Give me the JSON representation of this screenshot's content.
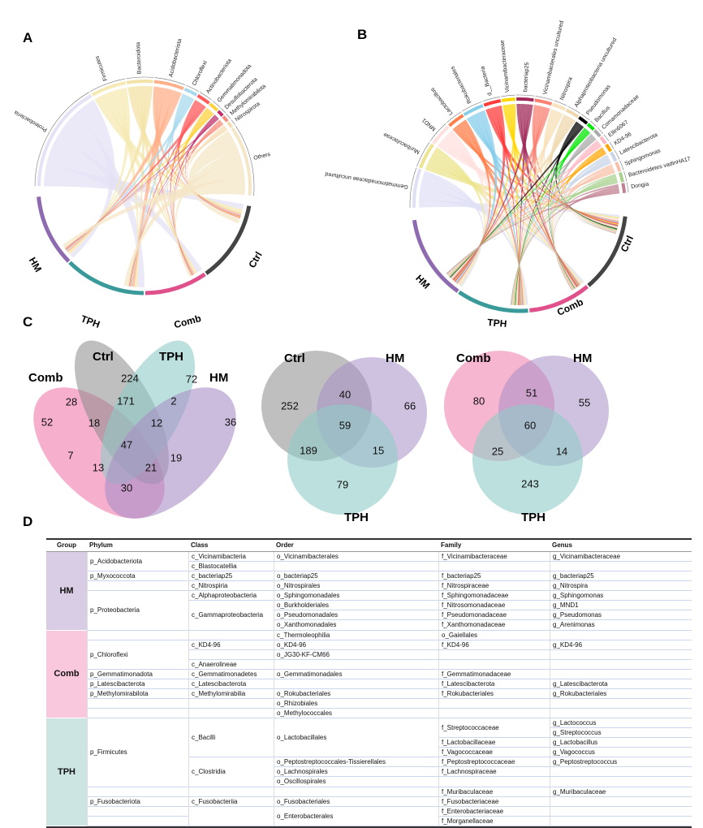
{
  "panels": {
    "a": "A",
    "b": "B",
    "c": "C",
    "d": "D"
  },
  "chord_a": {
    "taxa": [
      {
        "name": "Proteobacteria",
        "color": "#e4e2f6"
      },
      {
        "name": "Firmicutes",
        "color": "#f6e9b4"
      },
      {
        "name": "Bacteroidota",
        "color": "#f3e3a6"
      },
      {
        "name": "Acidobacteriota",
        "color": "#ffb08a"
      },
      {
        "name": "Chloroflexi",
        "color": "#a9d9ec"
      },
      {
        "name": "Actinobacteriota",
        "color": "#ff5a5a"
      },
      {
        "name": "Gemmatimonadota",
        "color": "#ffd23c"
      },
      {
        "name": "Desulfobacterota",
        "color": "#c0306a"
      },
      {
        "name": "Methylomirabilota",
        "color": "#fa8a7a"
      },
      {
        "name": "Nitrospirota",
        "color": "#f5dcb0"
      },
      {
        "name": "Others",
        "color": "#f4e6c6"
      }
    ],
    "groups": [
      {
        "name": "Ctrl",
        "color": "#444444"
      },
      {
        "name": "Comb",
        "color": "#e0508a"
      },
      {
        "name": "TPH",
        "color": "#3a9a9a"
      },
      {
        "name": "HM",
        "color": "#8e6bb0"
      }
    ]
  },
  "chord_b": {
    "taxa": [
      {
        "name": "Gemmatimonadaceae uncultured",
        "color": "#e0e0f5"
      },
      {
        "name": "Muribaculaceae",
        "color": "#ece48e"
      },
      {
        "name": "MND1",
        "color": "#ffe0de"
      },
      {
        "name": "Lactobacillus",
        "color": "#ff7f4a"
      },
      {
        "name": "Rokubacteriales",
        "color": "#87ceeb"
      },
      {
        "name": "d__Bacteria",
        "color": "#ff3b3b"
      },
      {
        "name": "Vicinamibacteraceae",
        "color": "#ffd700"
      },
      {
        "name": "bacteriap25",
        "color": "#a0295a"
      },
      {
        "name": "Vicinamibacterales uncultured",
        "color": "#fa8072"
      },
      {
        "name": "Nitrospira",
        "color": "#f8e0b8"
      },
      {
        "name": "Alphaproteobacteria uncultured",
        "color": "#efd8ae"
      },
      {
        "name": "Pseudomonas",
        "color": "#000000"
      },
      {
        "name": "Bacillus",
        "color": "#00e600"
      },
      {
        "name": "Comamonadaceae",
        "color": "#aaaaaa"
      },
      {
        "name": "Ellin6067",
        "color": "#ffb6c1"
      },
      {
        "name": "KD4-96",
        "color": "#ffa500"
      },
      {
        "name": "Latescibacterota",
        "color": "#c8d4e8"
      },
      {
        "name": "Sphingomonas",
        "color": "#f8c0a8"
      },
      {
        "name": "Bacteroidetes vadinHA17",
        "color": "#a8d08d"
      },
      {
        "name": "Dongia",
        "color": "#c08090"
      }
    ],
    "groups": [
      {
        "name": "Ctrl",
        "color": "#444444"
      },
      {
        "name": "Comb",
        "color": "#e0508a"
      },
      {
        "name": "TPH",
        "color": "#3a9a9a"
      },
      {
        "name": "HM",
        "color": "#8e6bb0"
      }
    ]
  },
  "venn1": {
    "sets": {
      "comb": "Comb",
      "ctrl": "Ctrl",
      "tph": "TPH",
      "hm": "HM"
    },
    "values": {
      "ctrl_only": "224",
      "tph_only": "72",
      "comb_ctrl": "28",
      "ctrl_tph": "171",
      "tph_hm": "2",
      "comb_only": "52",
      "hm_only": "36",
      "comb_ctrl_tph": "18",
      "ctrl_tph_hm": "12",
      "all": "47",
      "comb_tph": "7",
      "ctrl_hm": "19",
      "comb_ctrl_hm": "13",
      "comb_tph_hm": "21",
      "comb_hm": "30"
    }
  },
  "venn2": {
    "sets": {
      "ctrl": "Ctrl",
      "hm": "HM",
      "tph": "TPH"
    },
    "values": {
      "ctrl_only": "252",
      "ctrl_hm": "40",
      "hm_only": "66",
      "all": "59",
      "ctrl_tph": "189",
      "hm_tph": "15",
      "tph_only": "79"
    }
  },
  "venn3": {
    "sets": {
      "comb": "Comb",
      "hm": "HM",
      "tph": "TPH"
    },
    "values": {
      "comb_only": "80",
      "comb_hm": "51",
      "hm_only": "55",
      "all": "60",
      "comb_tph": "25",
      "hm_tph": "14",
      "tph_only": "243"
    }
  },
  "table": {
    "headers": [
      "Group",
      "Phylum",
      "Class",
      "Order",
      "Family",
      "Genus"
    ],
    "group_colors": {
      "HM": "#d9cde6",
      "Comb": "#f9c8dc",
      "TPH": "#cce5e3"
    },
    "columns": [
      [
        {
          "t": "HM",
          "s": 8
        },
        {
          "t": "Comb",
          "s": 9
        },
        {
          "t": "TPH",
          "s": 11
        }
      ],
      [
        {
          "t": "p_Acidobacteriota",
          "s": 2
        },
        {
          "t": "p_Myxococcota",
          "s": 1
        },
        {
          "t": "",
          "s": 1
        },
        {
          "t": "p_Proteobacteria",
          "s": 4
        },
        {
          "t": "",
          "s": 1
        },
        {
          "t": "p_Chloroflexi",
          "s": 3
        },
        {
          "t": "p_Gemmatimonadota",
          "s": 1
        },
        {
          "t": "p_Latescibacterota",
          "s": 1
        },
        {
          "t": "p_Methylomirabilota",
          "s": 1
        },
        {
          "t": "",
          "s": 1
        },
        {
          "t": "",
          "s": 1
        },
        {
          "t": "p_Firmicutes",
          "s": 7
        },
        {
          "t": "",
          "s": 1
        },
        {
          "t": "p_Fusobacteriota",
          "s": 1
        },
        {
          "t": "",
          "s": 1
        },
        {
          "t": "",
          "s": 1
        }
      ],
      [
        {
          "t": "c_Vicinamibacteria",
          "s": 1
        },
        {
          "t": "c_Blastocatellia",
          "s": 1
        },
        {
          "t": "c_bacteriap25",
          "s": 1
        },
        {
          "t": "c_Nitrospiria",
          "s": 1
        },
        {
          "t": "c_Alphaproteobacteria",
          "s": 1
        },
        {
          "t": "c_Gammaproteobacteria",
          "s": 3
        },
        {
          "t": "",
          "s": 1
        },
        {
          "t": "c_KD4-96",
          "s": 1
        },
        {
          "t": "",
          "s": 1
        },
        {
          "t": "c_Anaerolineae",
          "s": 1
        },
        {
          "t": "c_Gemmatimonadetes",
          "s": 1
        },
        {
          "t": "c_Latescibacterota",
          "s": 1
        },
        {
          "t": "c_Methylomirabilia",
          "s": 1
        },
        {
          "t": "",
          "s": 1
        },
        {
          "t": "",
          "s": 1
        },
        {
          "t": "c_Bacilli",
          "s": 4
        },
        {
          "t": "c_Clostridia",
          "s": 3
        },
        {
          "t": "",
          "s": 1
        },
        {
          "t": "c_Fusobacteriia",
          "s": 1
        },
        {
          "t": "",
          "s": 2
        }
      ],
      [
        {
          "t": "o_Vicinamibacterales",
          "s": 1
        },
        {
          "t": "",
          "s": 1
        },
        {
          "t": "o_bacteriap25",
          "s": 1
        },
        {
          "t": "o_Nitrospirales",
          "s": 1
        },
        {
          "t": "o_Sphingomonadales",
          "s": 1
        },
        {
          "t": "o_Burkholderiales",
          "s": 1
        },
        {
          "t": "o_Pseudomonadales",
          "s": 1
        },
        {
          "t": "o_Xanthomonadales",
          "s": 1
        },
        {
          "t": "c_Thermoleophilia",
          "s": 1
        },
        {
          "t": "o_KD4-96",
          "s": 1
        },
        {
          "t": "o_JG30-KF-CM66",
          "s": 1
        },
        {
          "t": "",
          "s": 1
        },
        {
          "t": "o_Gemmatimonadales",
          "s": 1
        },
        {
          "t": "",
          "s": 1
        },
        {
          "t": "o_Rokubacteriales",
          "s": 1
        },
        {
          "t": "o_Rhizobiales",
          "s": 1
        },
        {
          "t": "o_Methylococcales",
          "s": 1
        },
        {
          "t": "o_Lactobacillales",
          "s": 4
        },
        {
          "t": "o_Peptostreptococcales-Tissierellales",
          "s": 1
        },
        {
          "t": "o_Lachnospirales",
          "s": 1
        },
        {
          "t": "o_Oscillospirales",
          "s": 1
        },
        {
          "t": "",
          "s": 1
        },
        {
          "t": "o_Fusobacteriales",
          "s": 1
        },
        {
          "t": "o_Enterobacterales",
          "s": 2
        }
      ],
      [
        {
          "t": "f_Vicinamibacteraceae",
          "s": 1
        },
        {
          "t": "",
          "s": 1
        },
        {
          "t": "f_bacteriap25",
          "s": 1
        },
        {
          "t": "f_Nitrospiraceae",
          "s": 1
        },
        {
          "t": "f_Sphingomonadaceae",
          "s": 1
        },
        {
          "t": "f_Nitrosomonadaceae",
          "s": 1
        },
        {
          "t": "f_Pseudomonadaceae",
          "s": 1
        },
        {
          "t": "f_Xanthomonadaceae",
          "s": 1
        },
        {
          "t": "o_Gaiellales",
          "s": 1
        },
        {
          "t": "f_KD4-96",
          "s": 1
        },
        {
          "t": "",
          "s": 1
        },
        {
          "t": "",
          "s": 1
        },
        {
          "t": "f_Gemmatimonadaceae",
          "s": 1
        },
        {
          "t": "f_Latescibacterota",
          "s": 1
        },
        {
          "t": "f_Rokubacteriales",
          "s": 1
        },
        {
          "t": "",
          "s": 1
        },
        {
          "t": "",
          "s": 1
        },
        {
          "t": "f_Streptococcaceae",
          "s": 2
        },
        {
          "t": "f_Lactobacillaceae",
          "s": 1
        },
        {
          "t": "f_Vagococcaceae",
          "s": 1
        },
        {
          "t": "f_Peptostreptococcaceae",
          "s": 1
        },
        {
          "t": "f_Lachnospiraceae",
          "s": 1
        },
        {
          "t": "",
          "s": 1
        },
        {
          "t": "f_Muribaculaceae",
          "s": 1
        },
        {
          "t": "f_Fusobacteriaceae",
          "s": 1
        },
        {
          "t": "f_Enterobacteriaceae",
          "s": 1
        },
        {
          "t": "f_Morganellaceae",
          "s": 1
        }
      ],
      [
        {
          "t": "g_Vicinamibacteraceae",
          "s": 1
        },
        {
          "t": "",
          "s": 1
        },
        {
          "t": "g_bacteriap25",
          "s": 1
        },
        {
          "t": "g_Nitrospira",
          "s": 1
        },
        {
          "t": "g_Sphingomonas",
          "s": 1
        },
        {
          "t": "g_MND1",
          "s": 1
        },
        {
          "t": "g_Pseudomonas",
          "s": 1
        },
        {
          "t": "g_Arenimonas",
          "s": 1
        },
        {
          "t": "",
          "s": 1
        },
        {
          "t": "g_KD4-96",
          "s": 1
        },
        {
          "t": "",
          "s": 1
        },
        {
          "t": "",
          "s": 1
        },
        {
          "t": "",
          "s": 1
        },
        {
          "t": "g_Latescibacterota",
          "s": 1
        },
        {
          "t": "g_Rokubacteriales",
          "s": 1
        },
        {
          "t": "",
          "s": 1
        },
        {
          "t": "",
          "s": 1
        },
        {
          "t": "g_Lactococcus",
          "s": 1
        },
        {
          "t": "g_Streptococcus",
          "s": 1
        },
        {
          "t": "g_Lactobacillus",
          "s": 1
        },
        {
          "t": "g_Vagococcus",
          "s": 1
        },
        {
          "t": "g_Peptostreptococcus",
          "s": 1
        },
        {
          "t": "",
          "s": 1
        },
        {
          "t": "",
          "s": 1
        },
        {
          "t": "g_Muribaculaceae",
          "s": 1
        },
        {
          "t": "",
          "s": 1
        },
        {
          "t": "",
          "s": 1
        },
        {
          "t": "",
          "s": 1
        }
      ]
    ]
  }
}
